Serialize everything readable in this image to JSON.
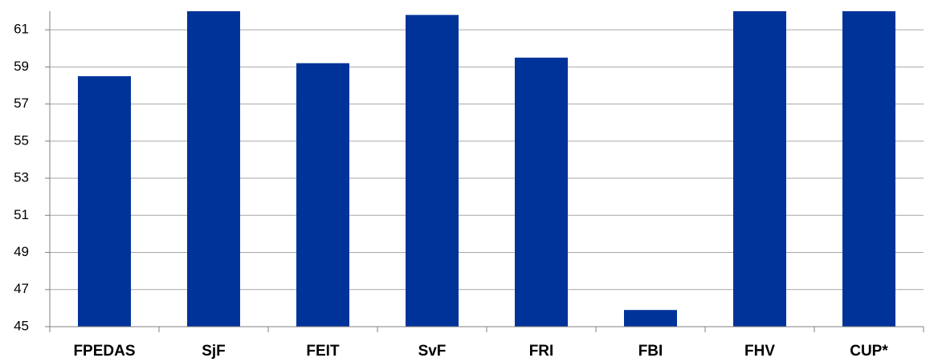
{
  "chart_data": {
    "type": "bar",
    "categories": [
      "FPEDAS",
      "SjF",
      "FEIT",
      "SvF",
      "FRI",
      "FBI",
      "FHV",
      "CUP*"
    ],
    "values": [
      58.5,
      62,
      59.2,
      61.8,
      59.5,
      45.9,
      62,
      62
    ],
    "color": "#003399",
    "ylim": [
      45,
      62
    ],
    "yticks": [
      45,
      47,
      49,
      51,
      53,
      55,
      57,
      59,
      61
    ],
    "grid": true
  }
}
